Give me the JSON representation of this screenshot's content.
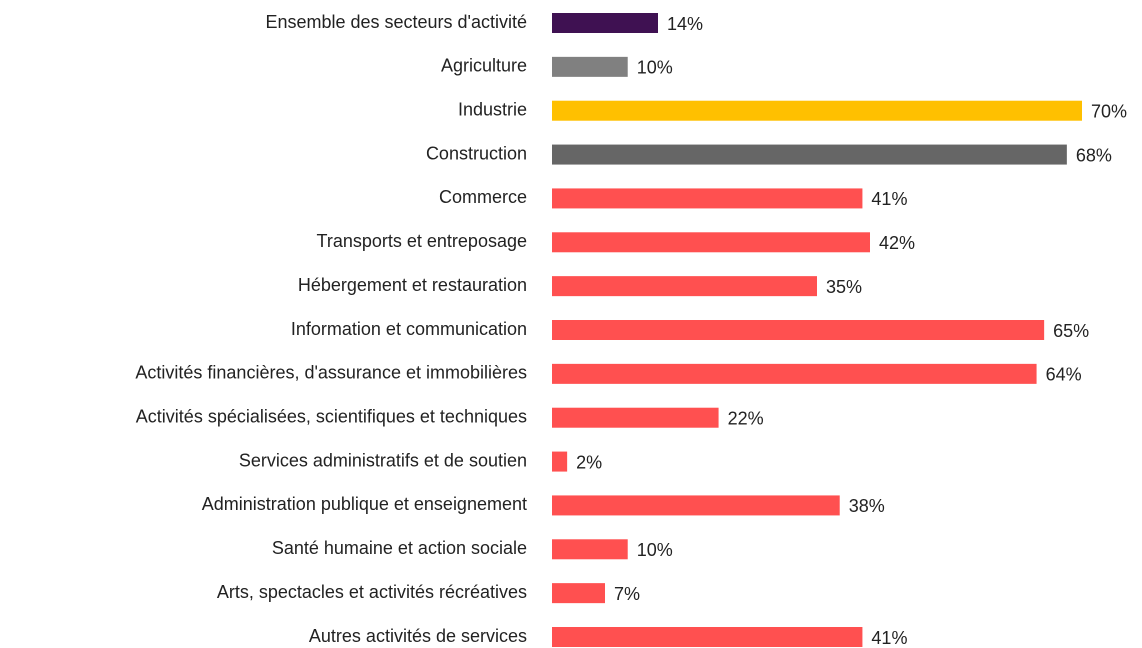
{
  "chart_data": {
    "type": "hbar",
    "categories": [
      "Ensemble des secteurs d'activité",
      "Agriculture",
      "Industrie",
      "Construction",
      "Commerce",
      "Transports et entreposage",
      "Hébergement et restauration",
      "Information et communication",
      "Activités financières, d'assurance et immobilières",
      "Activités spécialisées, scientifiques et techniques",
      "Services administratifs et de soutien",
      "Administration publique et enseignement",
      "Santé humaine et action sociale",
      "Arts, spectacles et activités récréatives",
      "Autres activités de services"
    ],
    "values": [
      14,
      10,
      70,
      68,
      41,
      42,
      35,
      65,
      64,
      22,
      2,
      38,
      10,
      7,
      41
    ],
    "value_labels": [
      "14%",
      "10%",
      "70%",
      "68%",
      "41%",
      "42%",
      "35%",
      "65%",
      "64%",
      "22%",
      "2%",
      "38%",
      "10%",
      "7%",
      "41%"
    ],
    "colors": [
      "#3f1152",
      "#808080",
      "#ffc000",
      "#666666",
      "#ff5050",
      "#ff5050",
      "#ff5050",
      "#ff5050",
      "#ff5050",
      "#ff5050",
      "#ff5050",
      "#ff5050",
      "#ff5050",
      "#ff5050",
      "#ff5050"
    ]
  }
}
